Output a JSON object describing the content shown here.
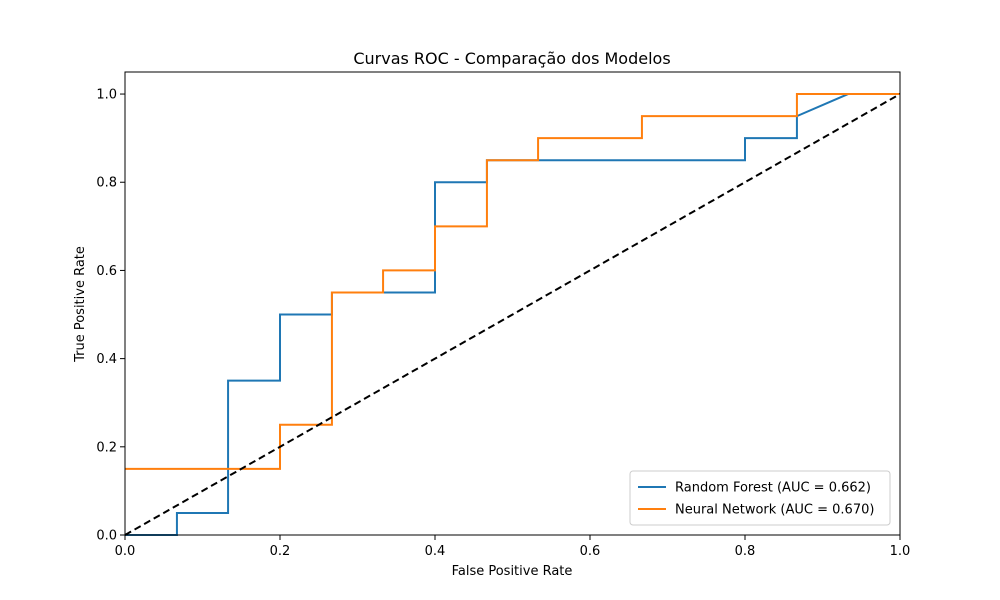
{
  "chart_data": {
    "type": "line",
    "title": "Curvas ROC - Comparação dos Modelos",
    "xlabel": "False Positive Rate",
    "ylabel": "True Positive Rate",
    "xlim": [
      0,
      1
    ],
    "ylim": [
      0,
      1.05
    ],
    "xticks": [
      "0.0",
      "0.2",
      "0.4",
      "0.6",
      "0.8",
      "1.0"
    ],
    "yticks": [
      "0.0",
      "0.2",
      "0.4",
      "0.6",
      "0.8",
      "1.0"
    ],
    "grid": false,
    "legend_position": "lower-right",
    "series": [
      {
        "name": "Random Forest (AUC = 0.662)",
        "color": "#1f77b4",
        "x": [
          0,
          0.067,
          0.067,
          0.133,
          0.133,
          0.2,
          0.2,
          0.267,
          0.267,
          0.4,
          0.4,
          0.467,
          0.467,
          0.533,
          0.8,
          0.8,
          0.867,
          0.867,
          0.933,
          1.0
        ],
        "y": [
          0,
          0,
          0.05,
          0.05,
          0.35,
          0.35,
          0.5,
          0.5,
          0.55,
          0.55,
          0.8,
          0.8,
          0.85,
          0.85,
          0.85,
          0.9,
          0.9,
          0.95,
          1.0,
          1.0
        ]
      },
      {
        "name": "Neural Network (AUC = 0.670)",
        "color": "#ff7f0e",
        "x": [
          0,
          0.2,
          0.2,
          0.267,
          0.267,
          0.333,
          0.333,
          0.4,
          0.4,
          0.467,
          0.467,
          0.533,
          0.533,
          0.667,
          0.667,
          0.867,
          0.867,
          1.0
        ],
        "y": [
          0.15,
          0.15,
          0.25,
          0.25,
          0.55,
          0.55,
          0.6,
          0.6,
          0.7,
          0.7,
          0.85,
          0.85,
          0.9,
          0.9,
          0.95,
          0.95,
          1.0,
          1.0
        ]
      },
      {
        "name": "",
        "color": "#000000",
        "dashed": true,
        "x": [
          0,
          1
        ],
        "y": [
          0,
          1
        ]
      }
    ]
  }
}
